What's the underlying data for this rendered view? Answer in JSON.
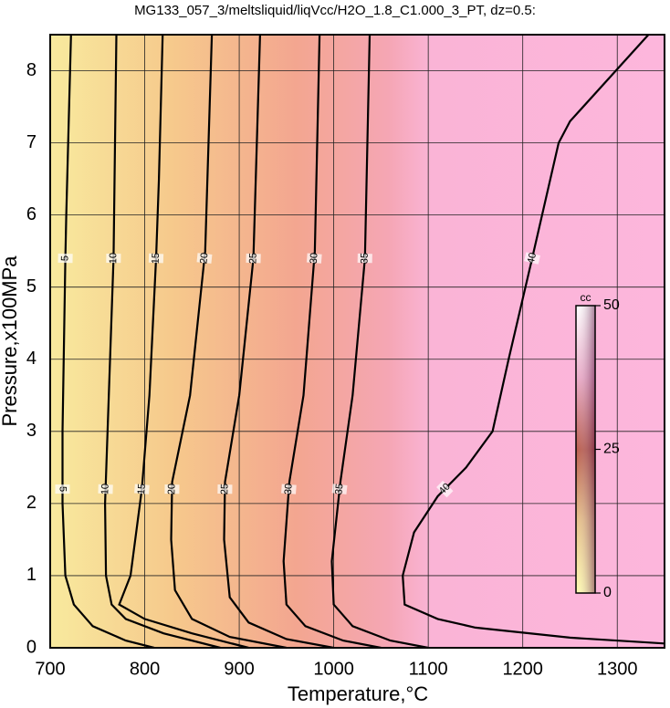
{
  "chart_data": {
    "type": "contour",
    "title": "MG133_057_3/meltsliquid/liqVcc/H2O_1.8_C1.000_3_PT, dz=0.5:",
    "x_label": "Temperature,°C",
    "y_label": "Pressure,x100MPa",
    "xlim": [
      700,
      1350
    ],
    "ylim": [
      0,
      8.5
    ],
    "xticks": [
      700,
      800,
      900,
      1000,
      1100,
      1200,
      1300
    ],
    "yticks": [
      0,
      1,
      2,
      3,
      4,
      5,
      6,
      7,
      8
    ],
    "grid": true,
    "colorbar": {
      "label": "cc",
      "lim": [
        0,
        50
      ],
      "ticks": [
        0,
        25,
        50
      ]
    },
    "contours": [
      {
        "level": 5,
        "x": [
          722,
          717,
          716,
          713,
          713,
          716,
          725,
          745,
          780,
          810
        ],
        "y": [
          8.5,
          6,
          5.4,
          3,
          2,
          1,
          0.6,
          0.3,
          0.1,
          0
        ]
      },
      {
        "level": 10,
        "x": [
          770,
          767,
          762,
          758,
          759,
          765,
          780,
          820,
          880
        ],
        "y": [
          8.5,
          5.4,
          3.5,
          2,
          1,
          0.6,
          0.4,
          0.2,
          0
        ]
      },
      {
        "level": 15,
        "x": [
          819,
          815,
          812,
          805,
          797,
          785,
          773,
          800,
          850,
          910
        ],
        "y": [
          8.5,
          6.5,
          5.4,
          3.5,
          2.2,
          1,
          0.6,
          0.4,
          0.2,
          0
        ]
      },
      {
        "level": 20,
        "x": [
          871,
          864,
          848,
          829,
          828,
          832,
          850,
          890,
          950
        ],
        "y": [
          8.5,
          5.5,
          3.5,
          2.3,
          1.5,
          0.8,
          0.4,
          0.15,
          0
        ]
      },
      {
        "level": 25,
        "x": [
          922,
          915,
          900,
          885,
          884,
          890,
          910,
          950,
          1000
        ],
        "y": [
          8.5,
          5.4,
          3.5,
          2.3,
          1.5,
          0.7,
          0.35,
          0.12,
          0
        ]
      },
      {
        "level": 30,
        "x": [
          985,
          980,
          968,
          953,
          947,
          950,
          970,
          1010,
          1050
        ],
        "y": [
          8.5,
          5.5,
          3.5,
          2.3,
          1.2,
          0.6,
          0.3,
          0.1,
          0
        ]
      },
      {
        "level": 35,
        "x": [
          1038,
          1033,
          1020,
          1007,
          998,
          1000,
          1020,
          1060,
          1100
        ],
        "y": [
          8.5,
          5.4,
          3.5,
          2.3,
          1.2,
          0.6,
          0.3,
          0.1,
          0
        ]
      },
      {
        "level": 40,
        "x": [
          1333,
          1250,
          1238,
          1210,
          1185,
          1168,
          1140,
          1110,
          1085,
          1073,
          1075,
          1110,
          1150,
          1250,
          1350
        ],
        "y": [
          8.5,
          7.3,
          7.0,
          5.4,
          4,
          3,
          2.5,
          2.1,
          1.6,
          1,
          0.6,
          0.4,
          0.28,
          0.14,
          0.06
        ]
      }
    ]
  }
}
